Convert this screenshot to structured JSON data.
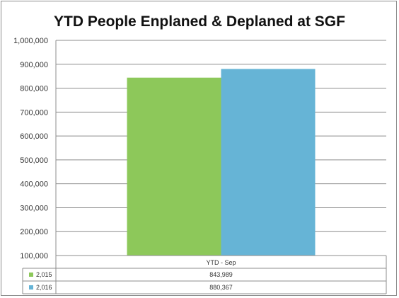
{
  "chart_data": {
    "type": "bar",
    "title": "YTD People Enplaned & Deplaned at SGF",
    "categories": [
      "YTD - Sep"
    ],
    "series": [
      {
        "name": "2,015",
        "values": [
          843989
        ],
        "label": "843,989",
        "color": "#8dc85a"
      },
      {
        "name": "2,016",
        "values": [
          880367
        ],
        "label": "880,367",
        "color": "#66b4d6"
      }
    ],
    "ylim": [
      100000,
      1000000
    ],
    "yticks": [
      100000,
      200000,
      300000,
      400000,
      500000,
      600000,
      700000,
      800000,
      900000,
      1000000
    ],
    "ytick_labels": [
      "100,000",
      "200,000",
      "300,000",
      "400,000",
      "500,000",
      "600,000",
      "700,000",
      "800,000",
      "900,000",
      "1,000,000"
    ],
    "grid": true,
    "legend": "data-table-below"
  }
}
